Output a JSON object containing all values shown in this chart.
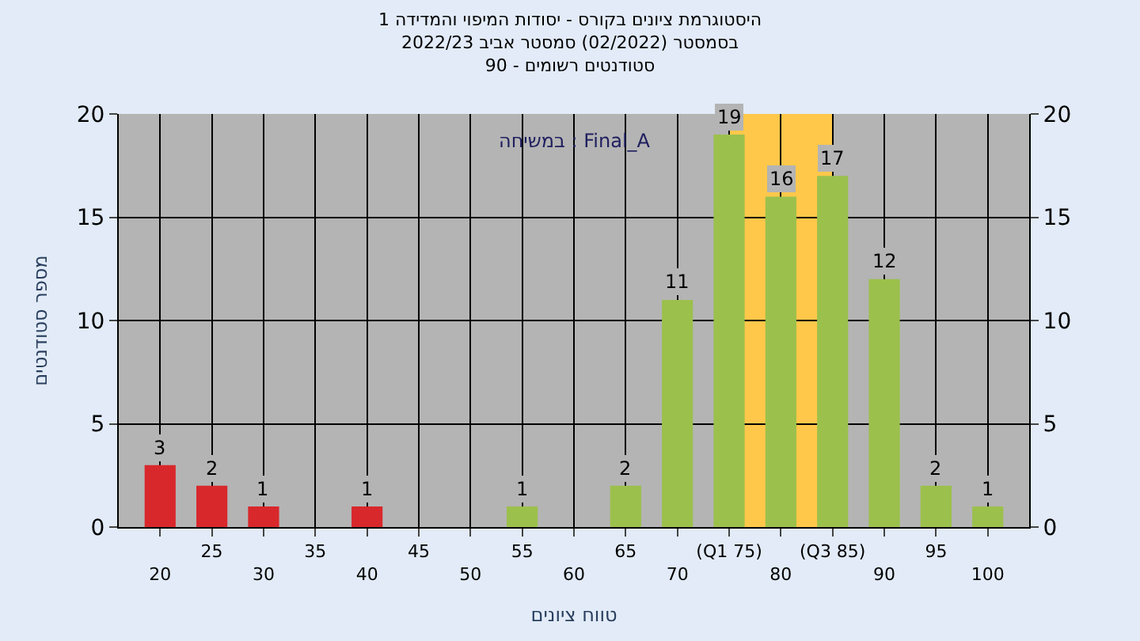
{
  "chart_data": {
    "type": "bar",
    "title": "היסטוגרמת ציונים בקורס - יסודות המיפוי והמדידה 1",
    "subtitle": "בסמסטר (02/2022) סמסטר אביב 2022/23\nסטודנטים רשומים - 90",
    "xlabel": "טווח ציונים",
    "ylabel": "מספר סטודנטים",
    "categories": [
      "20",
      "25",
      "30",
      "35",
      "40",
      "45",
      "50",
      "55",
      "60",
      "65",
      "70",
      "(Q1 75)",
      "80",
      "(Q3 85)",
      "90",
      "95",
      "100"
    ],
    "values": [
      3,
      2,
      1,
      0,
      1,
      0,
      0,
      1,
      0,
      2,
      11,
      19,
      16,
      17,
      12,
      2,
      1
    ],
    "value_labels": [
      "3",
      "2",
      "1",
      null,
      "1",
      null,
      null,
      "1",
      null,
      "2",
      "11",
      "19",
      "16",
      "17",
      "12",
      "2",
      "1"
    ],
    "colors": [
      "#d8282c",
      "#d8282c",
      "#d8282c",
      "#d8282c",
      "#d8282c",
      "#d8282c",
      "#d8282c",
      "#9cc04c",
      "#9cc04c",
      "#9cc04c",
      "#9cc04c",
      "#9cc04c",
      "#9cc04c",
      "#9cc04c",
      "#9cc04c",
      "#9cc04c",
      "#9cc04c"
    ],
    "ylim": [
      0,
      20
    ],
    "yticks": [
      0,
      5,
      10,
      15,
      20
    ],
    "y2lim": [
      0,
      20
    ],
    "y2ticks": [
      0,
      5,
      10,
      15,
      20
    ],
    "bands": [
      {
        "axis": "x",
        "from": "(Q1 75)",
        "to": "(Q3 85)",
        "color": "#ffc84a"
      }
    ],
    "annotations": [
      "במשיחה : Final_A"
    ],
    "grid": true,
    "legend": false
  }
}
